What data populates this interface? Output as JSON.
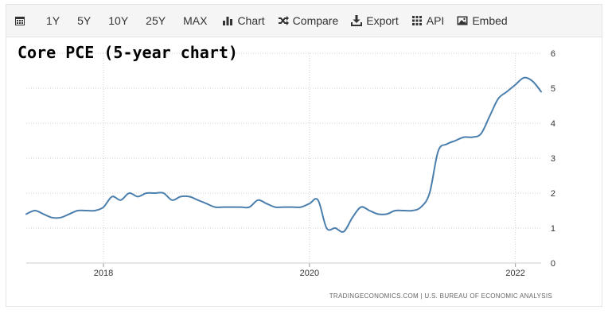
{
  "toolbar": {
    "calendar_icon": "calendar-icon",
    "ranges": [
      "1Y",
      "5Y",
      "10Y",
      "25Y",
      "MAX"
    ],
    "chart_label": "Chart",
    "compare_label": "Compare",
    "export_label": "Export",
    "api_label": "API",
    "embed_label": "Embed"
  },
  "credit": "TRADINGECONOMICS.COM  |  U.S. BUREAU OF ECONOMIC ANALYSIS",
  "chart_data": {
    "type": "line",
    "title": "Core PCE (5-year chart)",
    "xlabel": "",
    "ylabel": "",
    "x_range": [
      "2017-04",
      "2022-04"
    ],
    "ylim": [
      0,
      6
    ],
    "y_ticks": [
      0,
      1,
      2,
      3,
      4,
      5,
      6
    ],
    "x_ticks": [
      {
        "date": "2018-01",
        "label": "2018"
      },
      {
        "date": "2020-01",
        "label": "2020"
      },
      {
        "date": "2022-01",
        "label": "2022"
      }
    ],
    "grid": true,
    "line_color": "#4a7ead",
    "series": [
      {
        "x": [
          "2017-04",
          "2017-05",
          "2017-06",
          "2017-07",
          "2017-08",
          "2017-09",
          "2017-10",
          "2017-11",
          "2017-12",
          "2018-01",
          "2018-02",
          "2018-03",
          "2018-04",
          "2018-05",
          "2018-06",
          "2018-07",
          "2018-08",
          "2018-09",
          "2018-10",
          "2018-11",
          "2018-12",
          "2019-01",
          "2019-02",
          "2019-03",
          "2019-04",
          "2019-05",
          "2019-06",
          "2019-07",
          "2019-08",
          "2019-09",
          "2019-10",
          "2019-11",
          "2019-12",
          "2020-01",
          "2020-02",
          "2020-03",
          "2020-04",
          "2020-05",
          "2020-06",
          "2020-07",
          "2020-08",
          "2020-09",
          "2020-10",
          "2020-11",
          "2020-12",
          "2021-01",
          "2021-02",
          "2021-03",
          "2021-04",
          "2021-05",
          "2021-06",
          "2021-07",
          "2021-08",
          "2021-09",
          "2021-10",
          "2021-11",
          "2021-12",
          "2022-01",
          "2022-02",
          "2022-03",
          "2022-04"
        ],
        "values": [
          1.4,
          1.5,
          1.4,
          1.3,
          1.3,
          1.4,
          1.5,
          1.5,
          1.5,
          1.6,
          1.9,
          1.8,
          2.0,
          1.9,
          2.0,
          2.0,
          2.0,
          1.8,
          1.9,
          1.9,
          1.8,
          1.7,
          1.6,
          1.6,
          1.6,
          1.6,
          1.6,
          1.8,
          1.7,
          1.6,
          1.6,
          1.6,
          1.6,
          1.7,
          1.8,
          1.0,
          1.0,
          0.9,
          1.3,
          1.6,
          1.5,
          1.4,
          1.4,
          1.5,
          1.5,
          1.5,
          1.6,
          2.0,
          3.2,
          3.4,
          3.5,
          3.6,
          3.6,
          3.7,
          4.2,
          4.7,
          4.9,
          5.1,
          5.3,
          5.2,
          4.9
        ]
      }
    ]
  }
}
